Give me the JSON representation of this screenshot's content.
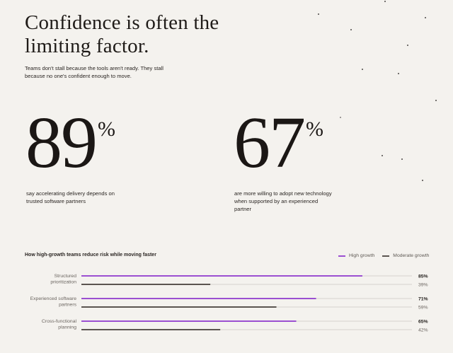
{
  "header": {
    "title": "Confidence is often the limiting factor.",
    "subtitle": "Teams don't stall because the tools aren't ready. They stall because no one's confident enough to move."
  },
  "stats": [
    {
      "value": "89",
      "unit": "%",
      "description": "say accelerating delivery depends on trusted software partners"
    },
    {
      "value": "67",
      "unit": "%",
      "description": "are more willing to adopt new technology when supported by an experienced partner"
    }
  ],
  "colors": {
    "high": "#9b4fd1",
    "moderate": "#5b5550",
    "track": "#dcd9d4",
    "background": "#f4f2ee"
  },
  "chart_data": {
    "type": "bar",
    "orientation": "horizontal",
    "title": "How high-growth teams reduce risk while moving faster",
    "categories": [
      "Structured prioritization",
      "Experienced software partners",
      "Cross-functional planning"
    ],
    "series": [
      {
        "name": "High growth",
        "values": [
          85,
          71,
          65
        ]
      },
      {
        "name": "Moderate growth",
        "values": [
          39,
          59,
          42
        ]
      }
    ],
    "value_labels": [
      [
        "85%",
        "39%"
      ],
      [
        "71%",
        "59%"
      ],
      [
        "65%",
        "42%"
      ]
    ],
    "xlim": [
      0,
      100
    ],
    "legend": "top-right",
    "grid": false
  }
}
